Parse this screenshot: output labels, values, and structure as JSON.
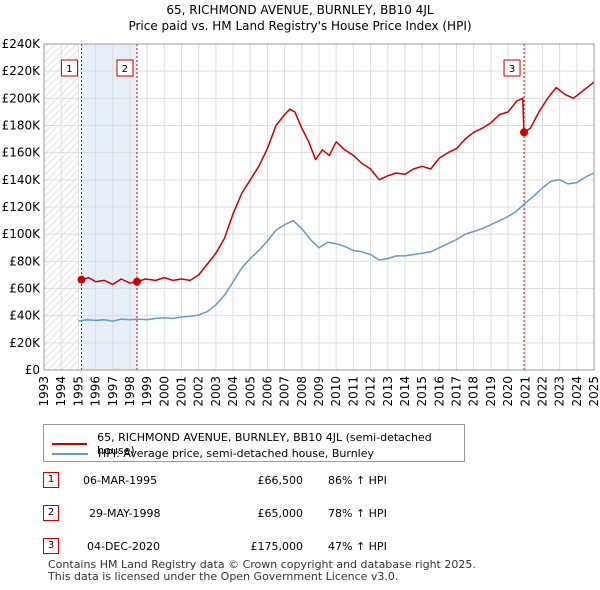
{
  "chart_data": {
    "type": "line",
    "title": "65, RICHMOND AVENUE, BURNLEY, BB10 4JL",
    "subtitle": "Price paid vs. HM Land Registry's House Price Index (HPI)",
    "xlabel": "",
    "ylabel": "",
    "xlim": [
      1993,
      2025
    ],
    "ylim": [
      0,
      240000
    ],
    "x_ticks": [
      "1993",
      "1994",
      "1995",
      "1996",
      "1997",
      "1998",
      "1999",
      "2000",
      "2001",
      "2002",
      "2003",
      "2004",
      "2005",
      "2006",
      "2007",
      "2008",
      "2009",
      "2010",
      "2011",
      "2012",
      "2013",
      "2014",
      "2015",
      "2016",
      "2017",
      "2018",
      "2019",
      "2020",
      "2021",
      "2022",
      "2023",
      "2024",
      "2025"
    ],
    "y_ticks": [
      {
        "value": 0,
        "label": "£0"
      },
      {
        "value": 20000,
        "label": "£20K"
      },
      {
        "value": 40000,
        "label": "£40K"
      },
      {
        "value": 60000,
        "label": "£60K"
      },
      {
        "value": 80000,
        "label": "£80K"
      },
      {
        "value": 100000,
        "label": "£100K"
      },
      {
        "value": 120000,
        "label": "£120K"
      },
      {
        "value": 140000,
        "label": "£140K"
      },
      {
        "value": 160000,
        "label": "£160K"
      },
      {
        "value": 180000,
        "label": "£180K"
      },
      {
        "value": 200000,
        "label": "£200K"
      },
      {
        "value": 220000,
        "label": "£220K"
      },
      {
        "value": 240000,
        "label": "£240K"
      }
    ],
    "grid": true,
    "hatch_before": 1995.0,
    "sale_bands": [
      [
        1995.18,
        1998.41
      ]
    ],
    "series": [
      {
        "name": "65, RICHMOND AVENUE, BURNLEY, BB10 4JL (semi-detached house)",
        "color": "#cc0000",
        "points": [
          [
            1995.18,
            66500
          ],
          [
            1995.6,
            68000
          ],
          [
            1996.0,
            65000
          ],
          [
            1996.5,
            66000
          ],
          [
            1997.0,
            63000
          ],
          [
            1997.5,
            67000
          ],
          [
            1998.0,
            64000
          ],
          [
            1998.41,
            65000
          ],
          [
            1998.9,
            67000
          ],
          [
            1999.5,
            66000
          ],
          [
            2000.0,
            68000
          ],
          [
            2000.5,
            66000
          ],
          [
            2001.0,
            67000
          ],
          [
            2001.5,
            66000
          ],
          [
            2002.0,
            70000
          ],
          [
            2002.5,
            78000
          ],
          [
            2003.0,
            86000
          ],
          [
            2003.5,
            97000
          ],
          [
            2004.0,
            115000
          ],
          [
            2004.5,
            130000
          ],
          [
            2005.0,
            140000
          ],
          [
            2005.5,
            150000
          ],
          [
            2006.0,
            163000
          ],
          [
            2006.5,
            180000
          ],
          [
            2007.0,
            188000
          ],
          [
            2007.3,
            192000
          ],
          [
            2007.6,
            190000
          ],
          [
            2008.0,
            178000
          ],
          [
            2008.4,
            168000
          ],
          [
            2008.8,
            155000
          ],
          [
            2009.2,
            162000
          ],
          [
            2009.6,
            158000
          ],
          [
            2010.0,
            168000
          ],
          [
            2010.5,
            162000
          ],
          [
            2011.0,
            158000
          ],
          [
            2011.5,
            152000
          ],
          [
            2012.0,
            148000
          ],
          [
            2012.5,
            140000
          ],
          [
            2013.0,
            143000
          ],
          [
            2013.5,
            145000
          ],
          [
            2014.0,
            144000
          ],
          [
            2014.5,
            148000
          ],
          [
            2015.0,
            150000
          ],
          [
            2015.5,
            148000
          ],
          [
            2016.0,
            156000
          ],
          [
            2016.5,
            160000
          ],
          [
            2017.0,
            163000
          ],
          [
            2017.5,
            170000
          ],
          [
            2018.0,
            175000
          ],
          [
            2018.5,
            178000
          ],
          [
            2019.0,
            182000
          ],
          [
            2019.5,
            188000
          ],
          [
            2020.0,
            190000
          ],
          [
            2020.5,
            198000
          ],
          [
            2020.85,
            200000
          ],
          [
            2020.93,
            175000
          ],
          [
            2021.3,
            178000
          ],
          [
            2021.8,
            190000
          ],
          [
            2022.3,
            200000
          ],
          [
            2022.8,
            208000
          ],
          [
            2023.3,
            203000
          ],
          [
            2023.8,
            200000
          ],
          [
            2024.3,
            205000
          ],
          [
            2024.8,
            210000
          ],
          [
            2025.0,
            212000
          ]
        ]
      },
      {
        "name": "HPI: Average price, semi-detached house, Burnley",
        "color": "#6699cc",
        "points": [
          [
            1995.0,
            36000
          ],
          [
            1995.5,
            37000
          ],
          [
            1996.0,
            36500
          ],
          [
            1996.5,
            37000
          ],
          [
            1997.0,
            36000
          ],
          [
            1997.5,
            37500
          ],
          [
            1998.0,
            37000
          ],
          [
            1998.5,
            37500
          ],
          [
            1999.0,
            37000
          ],
          [
            1999.5,
            38000
          ],
          [
            2000.0,
            38500
          ],
          [
            2000.5,
            38000
          ],
          [
            2001.0,
            39000
          ],
          [
            2001.5,
            39500
          ],
          [
            2002.0,
            40500
          ],
          [
            2002.5,
            43000
          ],
          [
            2003.0,
            48000
          ],
          [
            2003.5,
            55000
          ],
          [
            2004.0,
            65000
          ],
          [
            2004.5,
            75000
          ],
          [
            2005.0,
            82000
          ],
          [
            2005.5,
            88000
          ],
          [
            2006.0,
            95000
          ],
          [
            2006.5,
            103000
          ],
          [
            2007.0,
            107000
          ],
          [
            2007.5,
            110000
          ],
          [
            2008.0,
            104000
          ],
          [
            2008.5,
            96000
          ],
          [
            2009.0,
            90000
          ],
          [
            2009.5,
            94000
          ],
          [
            2010.0,
            93000
          ],
          [
            2010.5,
            91000
          ],
          [
            2011.0,
            88000
          ],
          [
            2011.5,
            87000
          ],
          [
            2012.0,
            85000
          ],
          [
            2012.5,
            81000
          ],
          [
            2013.0,
            82000
          ],
          [
            2013.5,
            84000
          ],
          [
            2014.0,
            84000
          ],
          [
            2014.5,
            85000
          ],
          [
            2015.0,
            86000
          ],
          [
            2015.5,
            87000
          ],
          [
            2016.0,
            90000
          ],
          [
            2016.5,
            93000
          ],
          [
            2017.0,
            96000
          ],
          [
            2017.5,
            100000
          ],
          [
            2018.0,
            102000
          ],
          [
            2018.5,
            104000
          ],
          [
            2019.0,
            107000
          ],
          [
            2019.5,
            110000
          ],
          [
            2020.0,
            113000
          ],
          [
            2020.5,
            117000
          ],
          [
            2021.0,
            123000
          ],
          [
            2021.5,
            128000
          ],
          [
            2022.0,
            134000
          ],
          [
            2022.5,
            139000
          ],
          [
            2023.0,
            140000
          ],
          [
            2023.5,
            137000
          ],
          [
            2024.0,
            138000
          ],
          [
            2024.5,
            142000
          ],
          [
            2025.0,
            145000
          ]
        ]
      }
    ],
    "sales": [
      {
        "num": "1",
        "x": 1995.18,
        "price": 66500
      },
      {
        "num": "2",
        "x": 1998.41,
        "price": 65000
      },
      {
        "num": "3",
        "x": 2020.93,
        "price": 175000
      }
    ]
  },
  "legend": {
    "property_label": "65, RICHMOND AVENUE, BURNLEY, BB10 4JL (semi-detached house)",
    "property_color": "#cc0000",
    "hpi_label": "HPI: Average price, semi-detached house, Burnley",
    "hpi_color": "#6699cc"
  },
  "sales_table": [
    {
      "num": "1",
      "date": "06-MAR-1995",
      "price": "£66,500",
      "hpi": "86% ↑ HPI"
    },
    {
      "num": "2",
      "date": "29-MAY-1998",
      "price": "£65,000",
      "hpi": "78% ↑ HPI"
    },
    {
      "num": "3",
      "date": "04-DEC-2020",
      "price": "£175,000",
      "hpi": "47% ↑ HPI"
    }
  ],
  "footer": {
    "line1": "Contains HM Land Registry data © Crown copyright and database right 2025.",
    "line2": "This data is licensed under the Open Government Licence v3.0."
  }
}
